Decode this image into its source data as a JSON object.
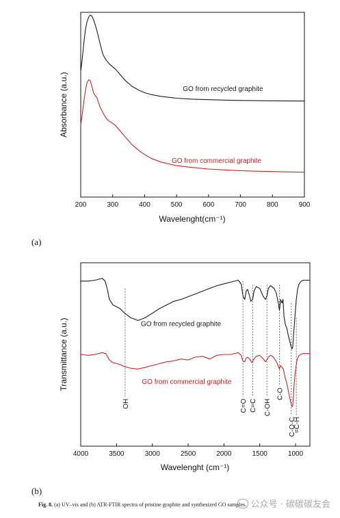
{
  "figure": {
    "panel_a_label": "(a)",
    "panel_b_label": "(b)",
    "caption_prefix": "Fig. 8.",
    "caption_text": "(a) UV–vis and (b) ATR-FTIR spectra of pristine graphite and synthesized GO samples.",
    "watermark_text": "公众号 · 碳碳碳友会"
  },
  "chart_data": [
    {
      "type": "line",
      "title": "",
      "xlabel": "Wavelenght(cm⁻¹)",
      "ylabel": "Absorbance (a.u.)",
      "xlim": [
        200,
        900
      ],
      "xticks": [
        200,
        300,
        400,
        500,
        600,
        700,
        800,
        900
      ],
      "ylim": [
        0,
        1
      ],
      "yticks_labeled": false,
      "grid": false,
      "legend": "none",
      "series": [
        {
          "name": "GO from recycled graphite",
          "color": "#1a1a1a",
          "x": [
            200,
            205,
            210,
            215,
            220,
            225,
            230,
            235,
            240,
            245,
            250,
            255,
            260,
            265,
            270,
            280,
            290,
            300,
            310,
            320,
            330,
            340,
            350,
            360,
            380,
            400,
            420,
            450,
            500,
            550,
            600,
            650,
            700,
            750,
            800,
            850,
            900
          ],
          "y": [
            0.68,
            0.75,
            0.84,
            0.91,
            0.95,
            0.975,
            0.985,
            0.98,
            0.96,
            0.935,
            0.905,
            0.87,
            0.835,
            0.8,
            0.77,
            0.74,
            0.72,
            0.705,
            0.69,
            0.67,
            0.65,
            0.63,
            0.615,
            0.6,
            0.58,
            0.565,
            0.555,
            0.545,
            0.535,
            0.53,
            0.527,
            0.525,
            0.523,
            0.522,
            0.521,
            0.52,
            0.52
          ]
        },
        {
          "name": "GO from commercial graphite",
          "color": "#d32020",
          "x": [
            200,
            205,
            210,
            215,
            220,
            225,
            230,
            235,
            240,
            245,
            250,
            255,
            260,
            270,
            280,
            290,
            300,
            310,
            320,
            330,
            340,
            350,
            360,
            380,
            400,
            420,
            450,
            500,
            550,
            600,
            650,
            700,
            750,
            800,
            850,
            900
          ],
          "y": [
            0.39,
            0.45,
            0.52,
            0.58,
            0.62,
            0.635,
            0.63,
            0.6,
            0.565,
            0.55,
            0.54,
            0.515,
            0.49,
            0.455,
            0.425,
            0.41,
            0.4,
            0.385,
            0.365,
            0.345,
            0.325,
            0.305,
            0.285,
            0.255,
            0.23,
            0.21,
            0.19,
            0.17,
            0.16,
            0.152,
            0.147,
            0.143,
            0.14,
            0.138,
            0.136,
            0.135
          ]
        }
      ],
      "annotations": [
        {
          "text": "GO from recycled graphite",
          "x": 645,
          "y": 0.575,
          "color": "#1a1a1a"
        },
        {
          "text": "GO from commercial graphite",
          "x": 625,
          "y": 0.185,
          "color": "#d32020"
        }
      ]
    },
    {
      "type": "line",
      "title": "",
      "xlabel": "Wavelenght (cm⁻¹)",
      "ylabel": "Transmittance (a.u.)",
      "xlim": [
        4000,
        800
      ],
      "xticks": [
        4000,
        3500,
        3000,
        2500,
        2000,
        1500,
        1000
      ],
      "ylim": [
        0,
        1
      ],
      "yticks_labeled": false,
      "grid": false,
      "legend": "none",
      "series": [
        {
          "name": "GO from recycled graphite",
          "color": "#1a1a1a",
          "x": [
            4000,
            3900,
            3800,
            3750,
            3700,
            3660,
            3630,
            3600,
            3550,
            3500,
            3450,
            3400,
            3300,
            3200,
            3100,
            3000,
            2900,
            2800,
            2700,
            2600,
            2500,
            2400,
            2300,
            2200,
            2100,
            2000,
            1900,
            1800,
            1760,
            1735,
            1710,
            1690,
            1670,
            1650,
            1625,
            1600,
            1580,
            1550,
            1500,
            1450,
            1420,
            1400,
            1380,
            1350,
            1300,
            1270,
            1240,
            1225,
            1210,
            1190,
            1175,
            1160,
            1140,
            1120,
            1100,
            1080,
            1060,
            1050,
            1040,
            1025,
            1010,
            990,
            970,
            950,
            920,
            890,
            860,
            830,
            800
          ],
          "y": [
            0.9,
            0.9,
            0.905,
            0.91,
            0.915,
            0.9,
            0.86,
            0.8,
            0.77,
            0.76,
            0.75,
            0.73,
            0.7,
            0.685,
            0.7,
            0.725,
            0.75,
            0.77,
            0.79,
            0.8,
            0.815,
            0.83,
            0.845,
            0.86,
            0.875,
            0.885,
            0.895,
            0.905,
            0.885,
            0.82,
            0.8,
            0.845,
            0.855,
            0.83,
            0.79,
            0.8,
            0.845,
            0.87,
            0.86,
            0.815,
            0.8,
            0.82,
            0.86,
            0.875,
            0.86,
            0.835,
            0.78,
            0.74,
            0.8,
            0.78,
            0.8,
            0.7,
            0.66,
            0.64,
            0.6,
            0.57,
            0.54,
            0.53,
            0.54,
            0.62,
            0.7,
            0.8,
            0.86,
            0.885,
            0.9,
            0.905,
            0.905,
            0.905,
            0.905
          ]
        },
        {
          "name": "GO from commercial graphite",
          "color": "#d32020",
          "x": [
            4000,
            3900,
            3800,
            3700,
            3650,
            3600,
            3550,
            3500,
            3450,
            3400,
            3300,
            3200,
            3100,
            3000,
            2900,
            2800,
            2700,
            2600,
            2500,
            2400,
            2300,
            2200,
            2100,
            2000,
            1900,
            1800,
            1760,
            1735,
            1710,
            1690,
            1670,
            1640,
            1610,
            1590,
            1550,
            1500,
            1450,
            1420,
            1400,
            1370,
            1340,
            1300,
            1260,
            1225,
            1210,
            1190,
            1170,
            1150,
            1120,
            1100,
            1080,
            1060,
            1050,
            1040,
            1030,
            1020,
            1000,
            980,
            960,
            930,
            900,
            870,
            840,
            800
          ],
          "y": [
            0.5,
            0.495,
            0.5,
            0.51,
            0.505,
            0.47,
            0.455,
            0.45,
            0.445,
            0.435,
            0.425,
            0.42,
            0.43,
            0.44,
            0.45,
            0.46,
            0.465,
            0.475,
            0.47,
            0.485,
            0.49,
            0.475,
            0.495,
            0.5,
            0.5,
            0.51,
            0.495,
            0.465,
            0.46,
            0.48,
            0.485,
            0.475,
            0.455,
            0.47,
            0.49,
            0.495,
            0.475,
            0.46,
            0.47,
            0.49,
            0.495,
            0.48,
            0.455,
            0.42,
            0.44,
            0.43,
            0.42,
            0.38,
            0.34,
            0.3,
            0.26,
            0.23,
            0.215,
            0.22,
            0.27,
            0.34,
            0.42,
            0.47,
            0.49,
            0.5,
            0.505,
            0.505,
            0.505,
            0.505
          ]
        }
      ],
      "peak_markers": [
        {
          "label": "OH",
          "x": 3380,
          "line_top": 0.86,
          "line_bottom": 0.27
        },
        {
          "label": "C=O",
          "x": 1735,
          "line_top": 0.9,
          "line_bottom": 0.27
        },
        {
          "label": "C=C",
          "x": 1600,
          "line_top": 0.88,
          "line_bottom": 0.27
        },
        {
          "label": "C-OH",
          "x": 1400,
          "line_top": 0.88,
          "line_bottom": 0.27
        },
        {
          "label": "C-O",
          "x": 1225,
          "line_top": 0.88,
          "line_bottom": 0.33
        },
        {
          "label": "C-O-C",
          "x": 1060,
          "line_top": 0.78,
          "line_bottom": 0.17
        },
        {
          "label": "=C-H",
          "x": 990,
          "line_top": 0.7,
          "line_bottom": 0.17
        }
      ],
      "annotations": [
        {
          "text": "GO from recycled graphite",
          "x": 2600,
          "y": 0.655,
          "color": "#1a1a1a"
        },
        {
          "text": "GO from commercial graphite",
          "x": 2520,
          "y": 0.34,
          "color": "#d32020"
        }
      ]
    }
  ]
}
